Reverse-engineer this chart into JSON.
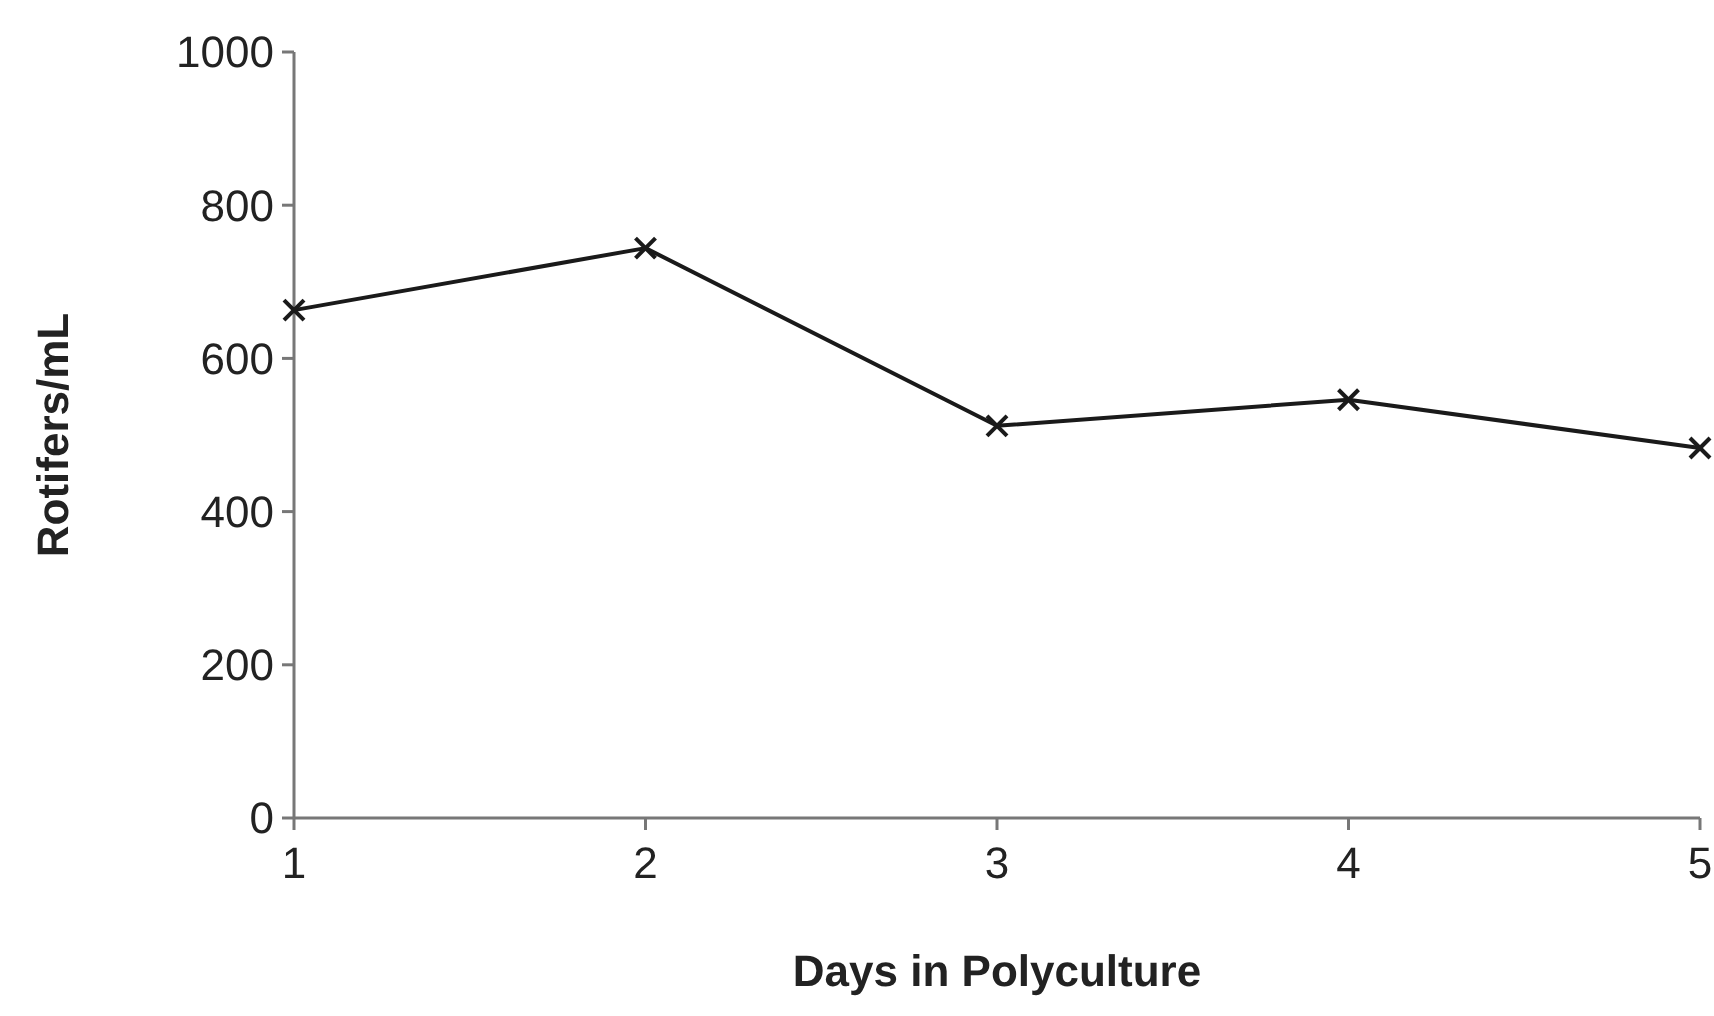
{
  "chart_data": {
    "type": "line",
    "xlabel": "Days in Polyculture",
    "ylabel": "Rotifers/mL",
    "x": [
      1,
      2,
      3,
      4,
      5
    ],
    "series": [
      {
        "color": "#1a1a1a",
        "values": [
          663,
          744,
          512,
          546,
          483
        ]
      }
    ],
    "xlim": [
      1,
      5
    ],
    "xticks": [
      1,
      2,
      3,
      4,
      5
    ],
    "ylim": [
      0,
      1000
    ],
    "yticks": [
      0,
      200,
      400,
      600,
      800,
      1000
    ],
    "grid": false,
    "marker": "cross",
    "line_style": "solid"
  }
}
